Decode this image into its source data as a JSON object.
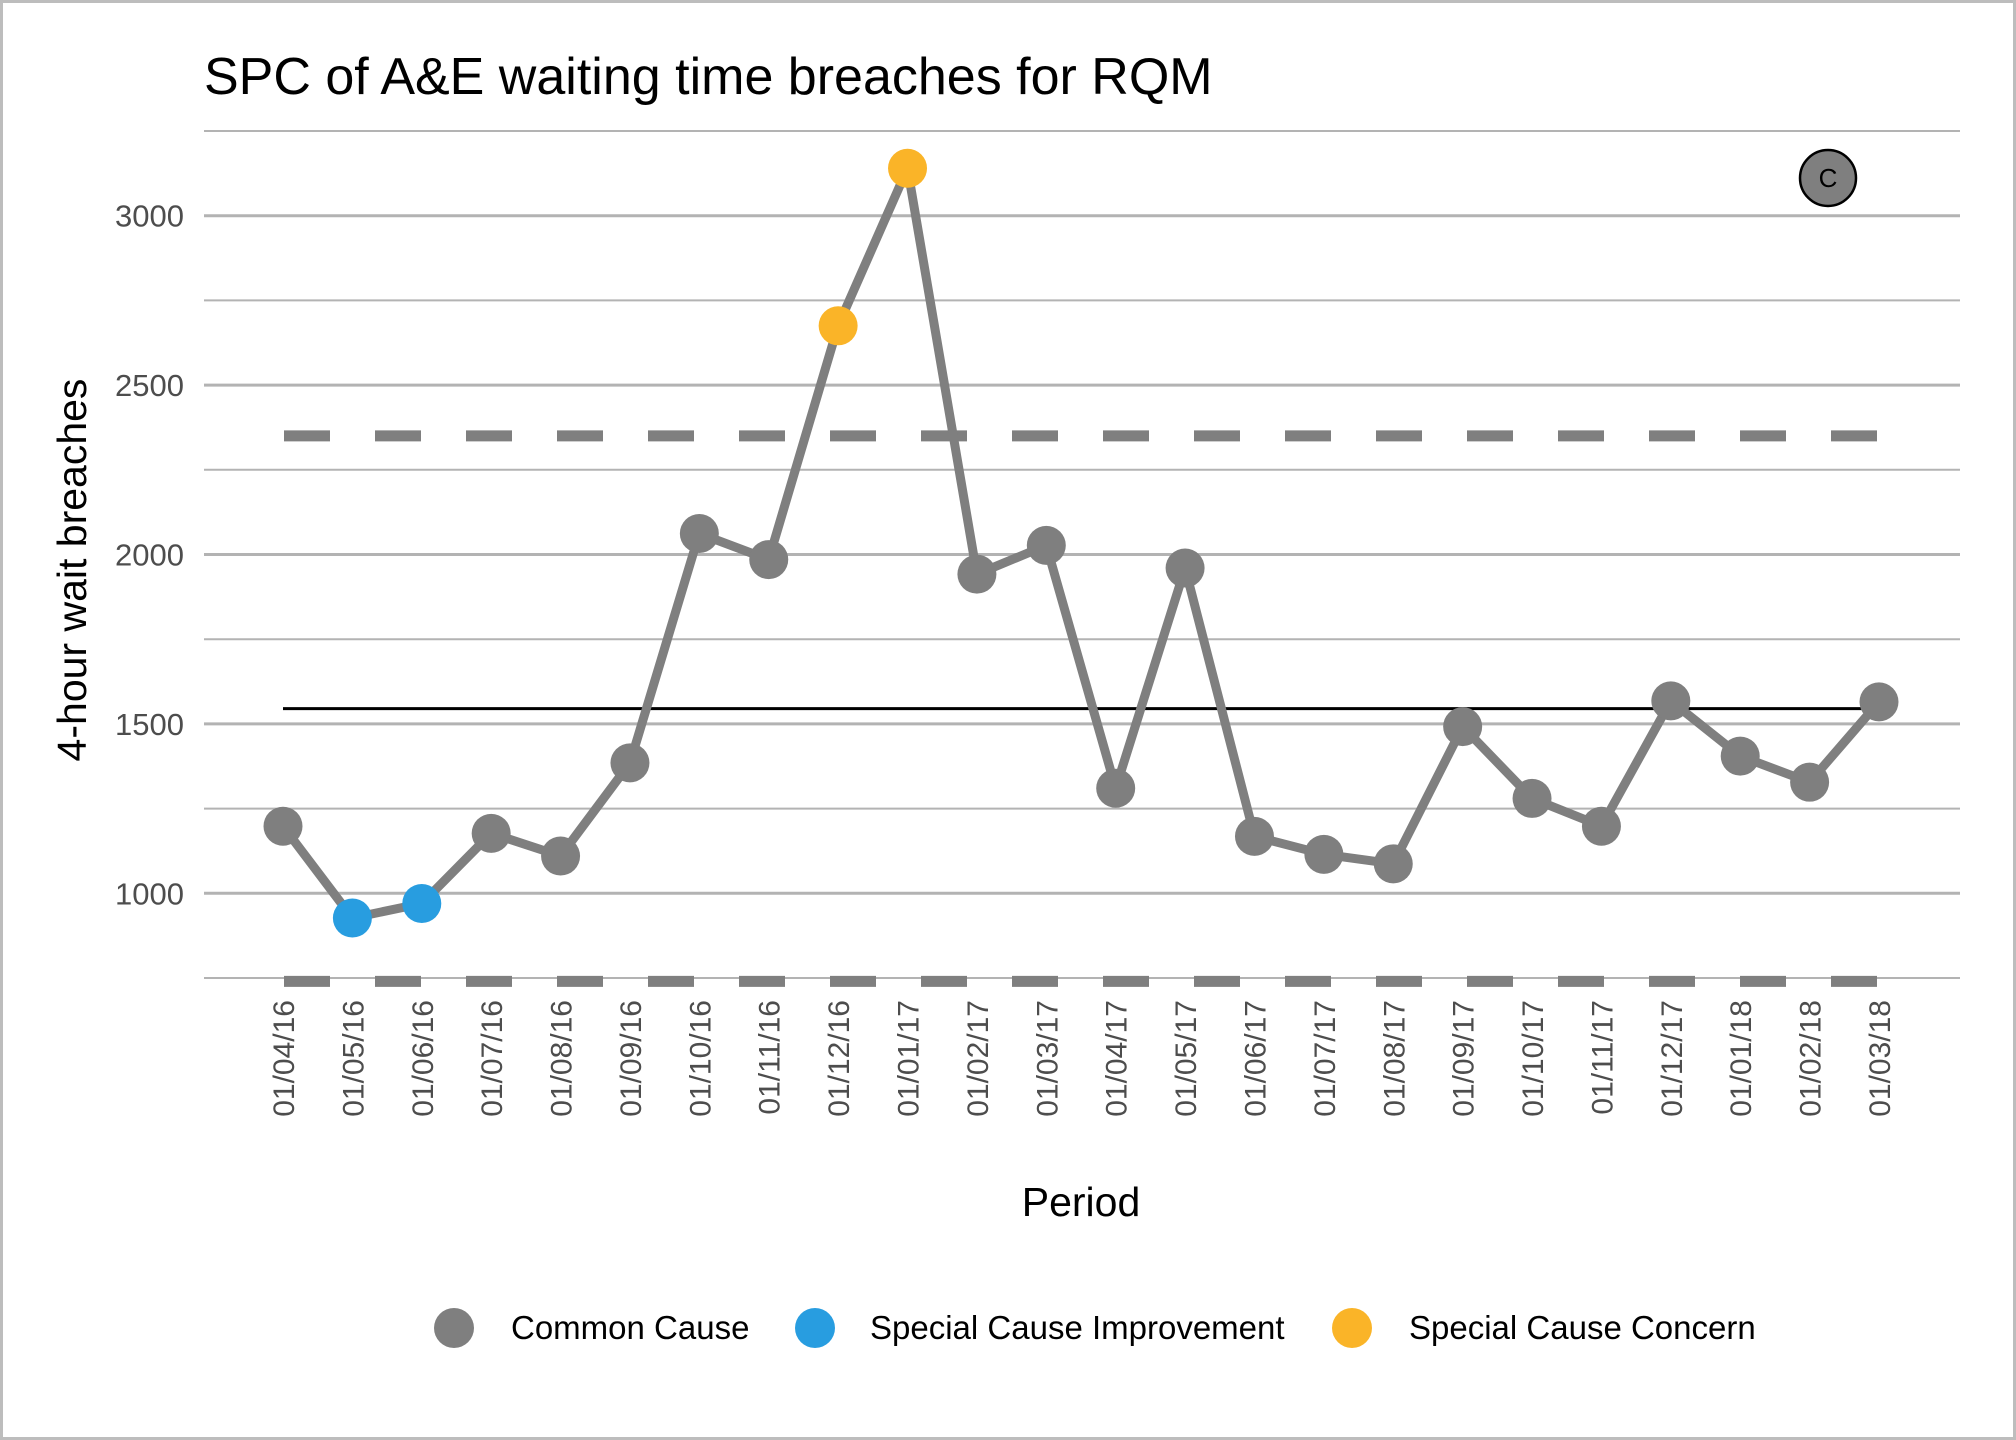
{
  "chart_data": {
    "type": "line",
    "title": "SPC of A&E waiting time breaches for RQM",
    "xlabel": "Period",
    "ylabel": "4-hour wait breaches",
    "ylim": [
      750,
      3250
    ],
    "yticks": [
      1000,
      1500,
      2000,
      2500,
      3000
    ],
    "minor_gridlines": [
      750,
      1250,
      1750,
      2250,
      2750,
      3250
    ],
    "categories": [
      "01/04/16",
      "01/05/16",
      "01/06/16",
      "01/07/16",
      "01/08/16",
      "01/09/16",
      "01/10/16",
      "01/11/16",
      "01/12/16",
      "01/01/17",
      "01/02/17",
      "01/03/17",
      "01/04/17",
      "01/05/17",
      "01/06/17",
      "01/07/17",
      "01/08/17",
      "01/09/17",
      "01/10/17",
      "01/11/17",
      "01/12/17",
      "01/01/18",
      "01/02/18",
      "01/03/18"
    ],
    "series": [
      {
        "name": "4-hour wait breaches",
        "values": [
          1198,
          927,
          970,
          1177,
          1110,
          1385,
          2062,
          1985,
          2675,
          3140,
          1942,
          2027,
          1310,
          1960,
          1168,
          1115,
          1087,
          1492,
          1280,
          1198,
          1568,
          1405,
          1328,
          1565
        ],
        "point_class": [
          "common",
          "improvement",
          "improvement",
          "common",
          "common",
          "common",
          "common",
          "common",
          "concern",
          "concern",
          "common",
          "common",
          "common",
          "common",
          "common",
          "common",
          "common",
          "common",
          "common",
          "common",
          "common",
          "common",
          "common",
          "common"
        ]
      }
    ],
    "mean": 1545,
    "upper_control_limit": 2350,
    "lower_control_limit": 740,
    "legend_position": "bottom",
    "legend": [
      {
        "key": "common",
        "label": "Common Cause",
        "color": "#7f7f7f"
      },
      {
        "key": "improvement",
        "label": "Special Cause Improvement",
        "color": "#289de0"
      },
      {
        "key": "concern",
        "label": "Special Cause Concern",
        "color": "#fab428"
      }
    ],
    "badge": "C",
    "colors": {
      "line": "#7f7f7f",
      "mean": "#000000",
      "limits": "#7f7f7f",
      "grid": "#b3b3b3",
      "badge_fill": "#7f7f7f"
    }
  }
}
